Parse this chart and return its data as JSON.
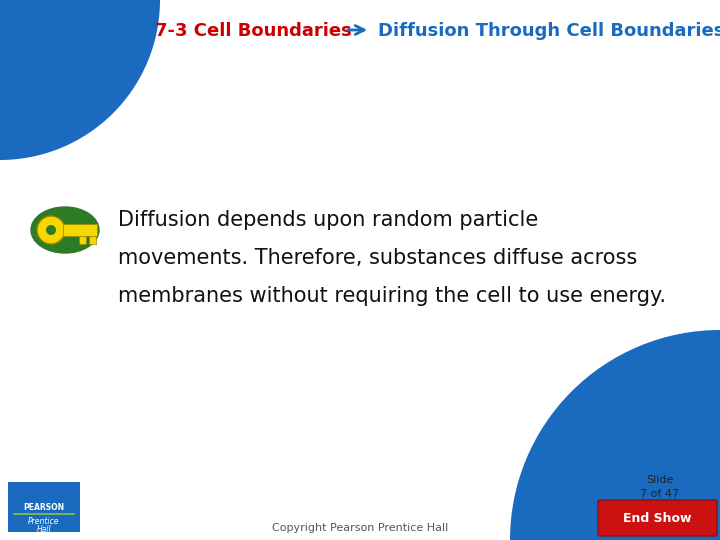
{
  "bg_color": "#ffffff",
  "corner_color": "#1a6bbf",
  "title_left": "7-3 Cell Boundaries",
  "title_left_color": "#cc0000",
  "arrow_color": "#1a6bbf",
  "title_right": "Diffusion Through Cell Boundaries",
  "title_right_color": "#1a6bbf",
  "title_fontsize": 13,
  "body_text_line1": "Diffusion depends upon random particle",
  "body_text_line2": "movements. Therefore, substances diffuse across",
  "body_text_line3": "membranes without requiring the cell to use energy.",
  "body_text_color": "#111111",
  "body_fontsize": 15,
  "key_circle_color": "#2d7a27",
  "key_color": "#f5d800",
  "copyright_text": "Copyright Pearson Prentice Hall",
  "copyright_color": "#555555",
  "copyright_fontsize": 8,
  "slide_text": "Slide\n7 of 47",
  "slide_fontsize": 8,
  "slide_color": "#222222",
  "end_show_color": "#cc1111",
  "end_show_text": "End Show",
  "pearson_box_color": "#1a6bbf",
  "top_left_wedge_r": 0.18,
  "bot_right_wedge_r": 0.28
}
